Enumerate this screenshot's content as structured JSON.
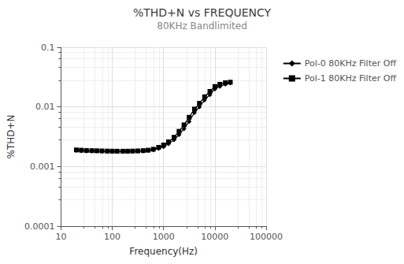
{
  "chart_data": {
    "type": "line",
    "title": "%THD+N vs FREQUENCY",
    "subtitle": "80KHz Bandlimited",
    "x_label": "Frequency(Hz)",
    "y_label": "%THD+N",
    "log": true,
    "grid": true,
    "legend": "right",
    "xlim": [
      10,
      100000
    ],
    "ylim": [
      0.0001,
      0.1
    ],
    "xticks": [
      10,
      100,
      1000,
      10000,
      100000
    ],
    "yticks": [
      0.0001,
      0.001,
      0.01,
      0.1
    ],
    "x": [
      20,
      25,
      31.5,
      40,
      50,
      63,
      80,
      100,
      125,
      160,
      200,
      250,
      315,
      400,
      500,
      630,
      800,
      1000,
      1250,
      1600,
      2000,
      2500,
      3150,
      4000,
      5000,
      6300,
      8000,
      10000,
      12500,
      16000,
      20000
    ],
    "series": [
      {
        "name": "Pol-0 80KHz Filter Off",
        "color": "#000000",
        "marker": "diamond",
        "values": [
          0.00185,
          0.00183,
          0.00182,
          0.00181,
          0.00181,
          0.0018,
          0.0018,
          0.0018,
          0.0018,
          0.0018,
          0.0018,
          0.0018,
          0.00181,
          0.00182,
          0.00185,
          0.0019,
          0.002,
          0.00215,
          0.0024,
          0.0028,
          0.0034,
          0.0043,
          0.0057,
          0.008,
          0.01,
          0.013,
          0.016,
          0.02,
          0.022,
          0.024,
          0.025
        ]
      },
      {
        "name": "Pol-1 80KHz Filter Off",
        "color": "#000000",
        "marker": "square",
        "values": [
          0.0019,
          0.00188,
          0.00186,
          0.00185,
          0.00184,
          0.00183,
          0.00182,
          0.00181,
          0.00181,
          0.00181,
          0.00181,
          0.00182,
          0.00183,
          0.00185,
          0.00188,
          0.00195,
          0.0021,
          0.0023,
          0.0026,
          0.0031,
          0.0039,
          0.005,
          0.0067,
          0.0092,
          0.0115,
          0.0148,
          0.0182,
          0.022,
          0.024,
          0.0255,
          0.026
        ]
      }
    ]
  }
}
